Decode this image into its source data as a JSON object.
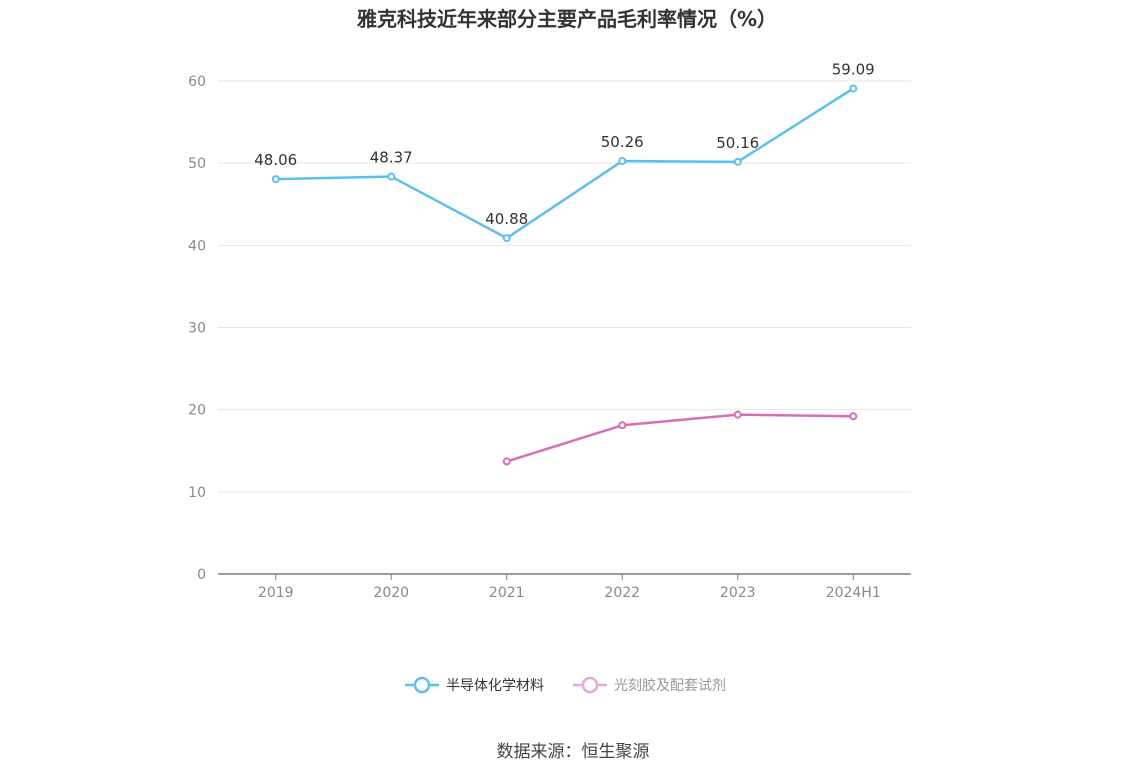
{
  "chart_data": {
    "type": "line",
    "title": "雅克科技近年来部分主要产品毛利率情况（%）",
    "categories": [
      "2019",
      "2020",
      "2021",
      "2022",
      "2023",
      "2024H1"
    ],
    "ylim": [
      0,
      60
    ],
    "yticks": [
      0,
      10,
      20,
      30,
      40,
      50,
      60
    ],
    "grid": true,
    "legend_position": "bottom",
    "series": [
      {
        "name": "半导体化学材料",
        "color": "#5bc0f0",
        "values": [
          48.06,
          48.37,
          40.88,
          50.26,
          50.16,
          59.09
        ],
        "labels": [
          "48.06",
          "48.37",
          "40.88",
          "50.26",
          "50.16",
          "59.09"
        ],
        "show_labels": true
      },
      {
        "name": "光刻胶及配套试剂",
        "color": "#d86fb6",
        "values": [
          null,
          null,
          13.7,
          18.1,
          19.4,
          19.2
        ],
        "show_labels": false
      }
    ]
  },
  "legend": {
    "items": [
      {
        "name": "半导体化学材料",
        "color": "#5bc0f0",
        "text_color": "#333333"
      },
      {
        "name": "光刻胶及配套试剂",
        "color": "#e6a8d6",
        "text_color": "#999999"
      }
    ]
  },
  "source": "数据来源：恒生聚源"
}
